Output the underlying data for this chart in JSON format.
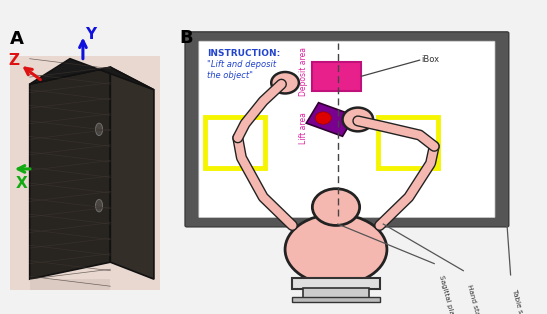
{
  "fig_width": 5.47,
  "fig_height": 3.14,
  "dpi": 100,
  "bg_color": "#f2f2f2",
  "panel_A_label": "A",
  "panel_B_label": "B",
  "instruction_title": "INSTRUCTION:",
  "instruction_text": "\"Lift and deposit\nthe object\"",
  "ibox_label": "iBox",
  "deposit_area_label": "Deposit area",
  "lift_area_label": "Lift area",
  "sagittal_label": "Sagittal plane",
  "hand_start_label": "Hand start area",
  "table_screen_label": "Table screen",
  "axis_z_color": "#dd1111",
  "axis_y_color": "#1111dd",
  "axis_x_color": "#11aa11",
  "deposit_box_color": "#e8208c",
  "lift_area_color": "#ffff00",
  "ibox_held_color": "#800080",
  "screen_bg": "#ffffff",
  "screen_border": "#3a3a3a",
  "screen_fill": "#555555",
  "person_skin": "#f5b8b0",
  "person_outline": "#222222",
  "dashed_line_color": "#444444",
  "label_color_magenta": "#e020a0",
  "label_color_blue": "#2244cc",
  "annotation_color": "#555555"
}
